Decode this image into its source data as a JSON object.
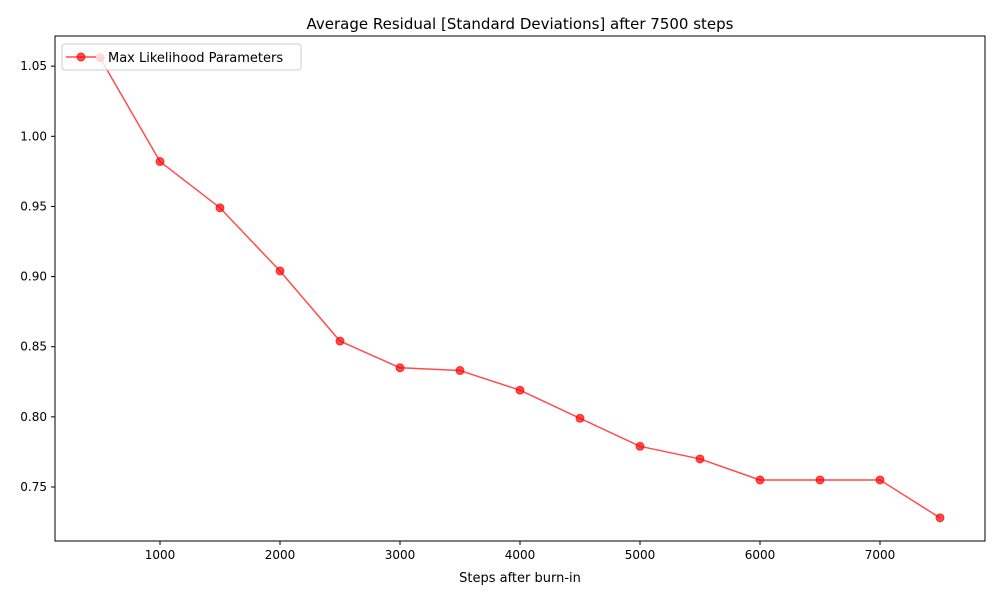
{
  "chart_data": {
    "type": "line",
    "title": "Average Residual [Standard Deviations] after 7500 steps",
    "xlabel": "Steps after burn-in",
    "ylabel": "",
    "xlim": [
      125,
      7875
    ],
    "ylim": [
      0.7115,
      1.0715
    ],
    "xticks": [
      1000,
      2000,
      3000,
      4000,
      5000,
      6000,
      7000
    ],
    "xtick_labels": [
      "1000",
      "2000",
      "3000",
      "4000",
      "5000",
      "6000",
      "7000"
    ],
    "yticks": [
      0.75,
      0.8,
      0.85,
      0.9,
      0.95,
      1.0,
      1.05
    ],
    "ytick_labels": [
      "0.75",
      "0.80",
      "0.85",
      "0.90",
      "0.95",
      "1.00",
      "1.05"
    ],
    "grid": false,
    "legend_position": "upper-left",
    "series": [
      {
        "name": "Max Likelihood Parameters",
        "color": "#ff0000",
        "marker": "circle",
        "x": [
          500,
          1000,
          1500,
          2000,
          2500,
          3000,
          3500,
          4000,
          4500,
          5000,
          5500,
          6000,
          6500,
          7000,
          7500
        ],
        "y": [
          1.056,
          0.982,
          0.949,
          0.904,
          0.854,
          0.835,
          0.833,
          0.819,
          0.799,
          0.779,
          0.77,
          0.755,
          0.755,
          0.755,
          0.728
        ]
      }
    ]
  }
}
